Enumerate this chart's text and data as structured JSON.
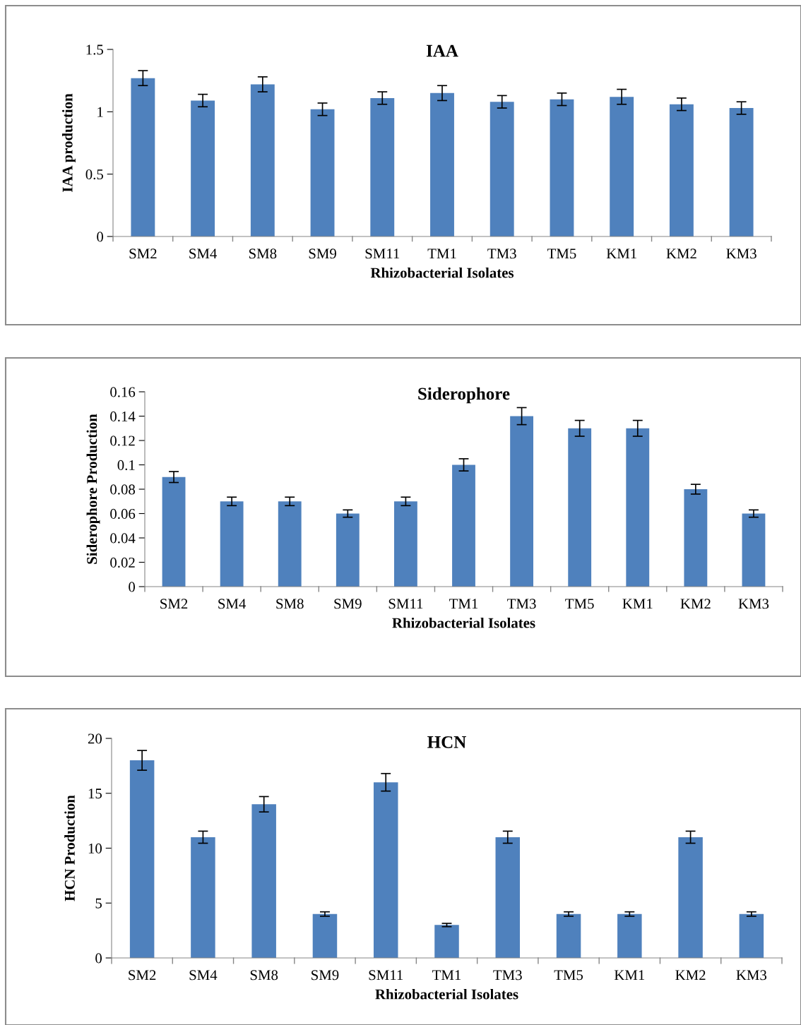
{
  "chart_data": [
    {
      "type": "bar",
      "title": "IAA",
      "xlabel": "Rhizobacterial Isolates",
      "ylabel": "IAA production",
      "categories": [
        "SM2",
        "SM4",
        "SM8",
        "SM9",
        "SM11",
        "TM1",
        "TM3",
        "TM5",
        "KM1",
        "KM2",
        "KM3"
      ],
      "values": [
        1.27,
        1.09,
        1.22,
        1.02,
        1.11,
        1.15,
        1.08,
        1.1,
        1.12,
        1.06,
        1.03
      ],
      "errors": [
        0.06,
        0.05,
        0.06,
        0.05,
        0.05,
        0.06,
        0.05,
        0.05,
        0.06,
        0.05,
        0.05
      ],
      "color": "#4f81bd",
      "ylim": [
        0,
        1.5
      ],
      "yticks": [
        0,
        0.5,
        1,
        1.5
      ],
      "grid": false,
      "legend": false
    },
    {
      "type": "bar",
      "title": "Siderophore",
      "xlabel": "Rhizobacterial Isolates",
      "ylabel": "Siderophore Production",
      "categories": [
        "SM2",
        "SM4",
        "SM8",
        "SM9",
        "SM11",
        "TM1",
        "TM3",
        "TM5",
        "KM1",
        "KM2",
        "KM3"
      ],
      "values": [
        0.09,
        0.07,
        0.07,
        0.06,
        0.07,
        0.1,
        0.14,
        0.13,
        0.13,
        0.08,
        0.06
      ],
      "errors": [
        0.0045,
        0.0035,
        0.0035,
        0.003,
        0.0035,
        0.005,
        0.007,
        0.0065,
        0.0065,
        0.004,
        0.003
      ],
      "color": "#4f81bd",
      "ylim": [
        0,
        0.16
      ],
      "yticks": [
        0,
        0.02,
        0.04,
        0.06,
        0.08,
        0.1,
        0.12,
        0.14,
        0.16
      ],
      "grid": false,
      "legend": false
    },
    {
      "type": "bar",
      "title": "HCN",
      "xlabel": "Rhizobacterial Isolates",
      "ylabel": "HCN Production",
      "categories": [
        "SM2",
        "SM4",
        "SM8",
        "SM9",
        "SM11",
        "TM1",
        "TM3",
        "TM5",
        "KM1",
        "KM2",
        "KM3"
      ],
      "values": [
        18,
        11,
        14,
        4,
        16,
        3,
        11,
        4,
        4,
        11,
        4
      ],
      "errors": [
        0.9,
        0.55,
        0.7,
        0.2,
        0.8,
        0.15,
        0.55,
        0.2,
        0.2,
        0.55,
        0.2
      ],
      "color": "#4f81bd",
      "ylim": [
        0,
        20
      ],
      "yticks": [
        0,
        5,
        10,
        15,
        20
      ],
      "grid": false,
      "legend": false
    }
  ]
}
